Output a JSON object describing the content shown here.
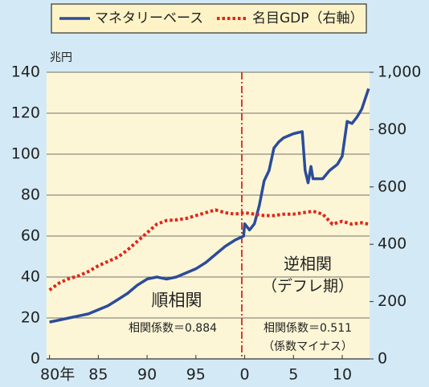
{
  "chart_data": {
    "type": "line",
    "y_unit": "兆円",
    "annotations": [
      "順相関",
      "逆相関",
      "（デフレ期）",
      "相関係数＝0.884",
      "相関係数＝0.511",
      "（係数マイナス）"
    ],
    "xlim": [
      1979.7,
      2012.8
    ],
    "xticks": [
      {
        "value": 1980,
        "label": "80年"
      },
      {
        "value": 1985,
        "label": "85"
      },
      {
        "value": 1990,
        "label": "90"
      },
      {
        "value": 1995,
        "label": "95"
      },
      {
        "value": 2000,
        "label": "0"
      },
      {
        "value": 2005,
        "label": "5"
      },
      {
        "value": 2010,
        "label": "10"
      }
    ],
    "ylim": [
      0,
      140
    ],
    "yticks": [
      0,
      20,
      40,
      60,
      80,
      100,
      120,
      140
    ],
    "y2lim": [
      0,
      1000
    ],
    "y2ticks": [
      0,
      200,
      400,
      600,
      800,
      {
        "value": 1000,
        "label": "1,000"
      }
    ],
    "grid": true,
    "series": [
      {
        "name": "マネタリーベース",
        "color": "#2b4c9b",
        "style": "solid",
        "x": [
          1980,
          1981,
          1982,
          1983,
          1984,
          1985,
          1986,
          1987,
          1988,
          1989,
          1990,
          1991,
          1992,
          1993,
          1994,
          1995,
          1996,
          1997,
          1998,
          1999,
          1999.9,
          2000,
          2000.5,
          2001,
          2001.5,
          2002,
          2002.5,
          2003,
          2003.5,
          2004,
          2005,
          2005.9,
          2006.2,
          2006.5,
          2006.8,
          2007,
          2008,
          2008.7,
          2009.5,
          2010,
          2010.5,
          2011,
          2011.5,
          2012,
          2012.7
        ],
        "values": [
          18,
          19,
          20,
          21,
          22,
          24,
          26,
          29,
          32,
          36,
          39,
          40,
          39,
          40,
          42,
          44,
          47,
          51,
          55,
          58,
          60,
          66,
          63,
          66,
          75,
          87,
          92,
          103,
          106,
          108,
          110,
          111,
          92,
          86,
          94,
          88,
          88,
          92,
          95,
          99,
          116,
          115,
          118,
          122,
          132
        ]
      },
      {
        "name": "名目GDP（右軸）",
        "color": "#e0261a",
        "style": "dotted",
        "axis": "y2",
        "x": [
          1980,
          1981,
          1982,
          1983,
          1984,
          1985,
          1986,
          1987,
          1988,
          1989,
          1990,
          1991,
          1992,
          1993,
          1994,
          1995,
          1996,
          1997,
          1998,
          1999,
          2000,
          2001,
          2002,
          2003,
          2004,
          2005,
          2006,
          2007,
          2008,
          2009,
          2010,
          2011,
          2012,
          2012.7
        ],
        "values": [
          240,
          265,
          280,
          290,
          305,
          325,
          340,
          355,
          380,
          410,
          440,
          470,
          483,
          485,
          490,
          500,
          510,
          520,
          510,
          505,
          510,
          505,
          500,
          500,
          505,
          505,
          510,
          515,
          505,
          470,
          480,
          470,
          475,
          470
        ]
      }
    ]
  }
}
